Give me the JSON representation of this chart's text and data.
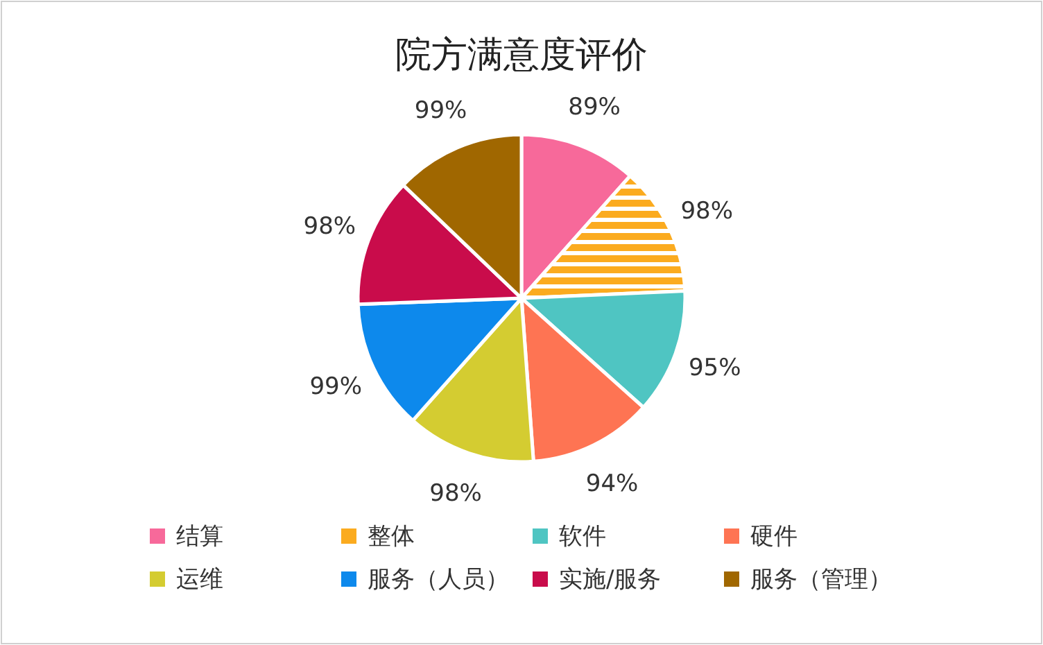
{
  "chart_data": {
    "type": "pie",
    "title": "院方满意度评价",
    "categories": [
      "结算",
      "整体",
      "软件",
      "硬件",
      "运维",
      "服务（人员）",
      "实施/服务",
      "服务（管理）"
    ],
    "values": [
      89,
      98,
      95,
      94,
      98,
      99,
      98,
      99
    ],
    "value_labels": [
      "89%",
      "98%",
      "95%",
      "94%",
      "98%",
      "99%",
      "98%",
      "99%"
    ],
    "colors": [
      "#f7699a",
      "#fbab1f",
      "#4fc5c2",
      "#fe7453",
      "#d4cc31",
      "#0d89ec",
      "#c90c4b",
      "#a06700"
    ],
    "legend": "bottom"
  }
}
